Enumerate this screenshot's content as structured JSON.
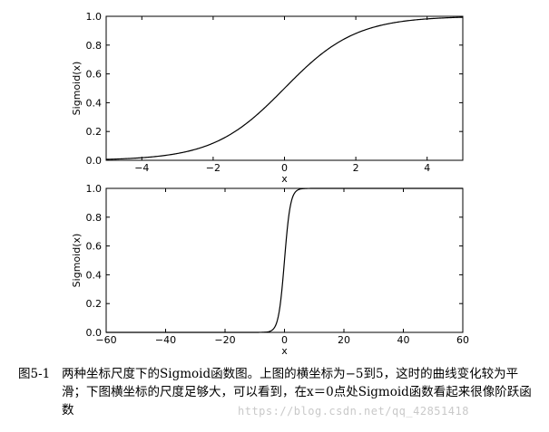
{
  "chart_data": [
    {
      "type": "line",
      "function": "sigmoid",
      "xlabel": "x",
      "ylabel": "Sigmoid(x)",
      "xlim": [
        -5,
        5
      ],
      "ylim": [
        0.0,
        1.0
      ],
      "xticks": [
        "−4",
        "−2",
        "0",
        "2",
        "4"
      ],
      "xtick_values": [
        -4,
        -2,
        0,
        2,
        4
      ],
      "yticks": [
        "0.0",
        "0.2",
        "0.4",
        "0.6",
        "0.8",
        "1.0"
      ],
      "ytick_values": [
        0,
        0.2,
        0.4,
        0.6,
        0.8,
        1.0
      ],
      "grid": false,
      "series": [
        {
          "x": [
            -5,
            -4,
            -3,
            -2,
            -1,
            0,
            1,
            2,
            3,
            4,
            5
          ],
          "values": [
            0.007,
            0.018,
            0.047,
            0.119,
            0.269,
            0.5,
            0.731,
            0.881,
            0.953,
            0.982,
            0.993
          ]
        }
      ]
    },
    {
      "type": "line",
      "function": "sigmoid",
      "xlabel": "x",
      "ylabel": "Sigmoid(x)",
      "xlim": [
        -60,
        60
      ],
      "ylim": [
        0.0,
        1.0
      ],
      "xticks": [
        "−60",
        "−40",
        "−20",
        "0",
        "20",
        "40",
        "60"
      ],
      "xtick_values": [
        -60,
        -40,
        -20,
        0,
        20,
        40,
        60
      ],
      "yticks": [
        "0.0",
        "0.2",
        "0.4",
        "0.6",
        "0.8",
        "1.0"
      ],
      "ytick_values": [
        0,
        0.2,
        0.4,
        0.6,
        0.8,
        1.0
      ],
      "grid": false,
      "series": [
        {
          "x": [
            -60,
            -20,
            -5,
            -3,
            -1,
            0,
            1,
            3,
            5,
            20,
            60
          ],
          "values": [
            0.0,
            0.0,
            0.007,
            0.047,
            0.269,
            0.5,
            0.731,
            0.953,
            0.993,
            1.0,
            1.0
          ]
        }
      ]
    }
  ],
  "caption": {
    "label": "图5-1",
    "text": "两种坐标尺度下的Sigmoid函数图。上图的横坐标为−5到5，这时的曲线变化较为平滑；下图横坐标的尺度足够大，可以看到，在x＝0点处Sigmoid函数看起来很像阶跃函数"
  },
  "watermark": "https://blog.csdn.net/qq_42851418"
}
